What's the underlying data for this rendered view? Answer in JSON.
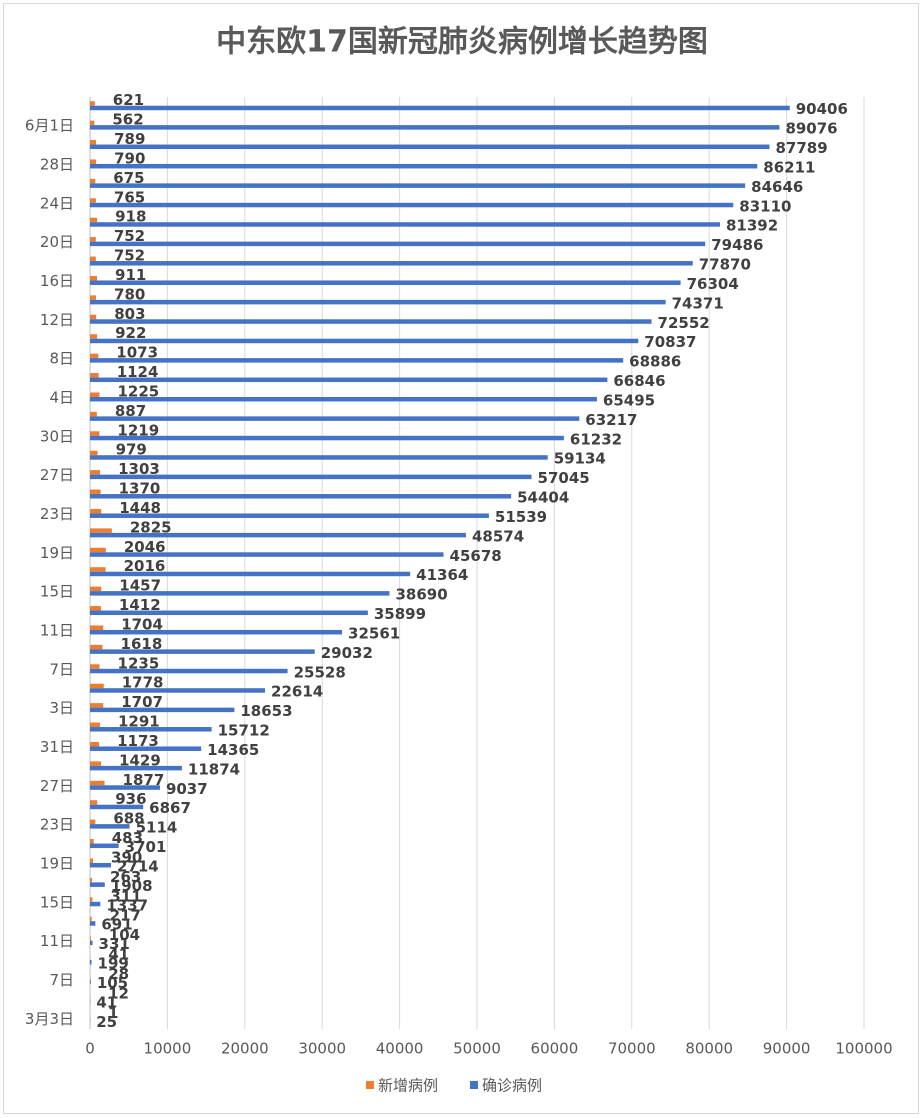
{
  "chart_data": {
    "type": "hbar",
    "title": "中东欧17国新冠肺炎病例增长趋势图",
    "categories": [
      "3月3日",
      null,
      "7日",
      null,
      "11日",
      null,
      "15日",
      null,
      "19日",
      null,
      "23日",
      null,
      "27日",
      null,
      "31日",
      null,
      "3日",
      null,
      "7日",
      null,
      "11日",
      null,
      "15日",
      null,
      "19日",
      null,
      "23日",
      null,
      "27日",
      null,
      "30日",
      null,
      "4日",
      null,
      "8日",
      null,
      "12日",
      null,
      "16日",
      null,
      "20日",
      null,
      "24日",
      null,
      "28日",
      null,
      "6月1日",
      null
    ],
    "series": [
      {
        "name": "新增病例",
        "color": "#ed7d31",
        "values": [
          1,
          12,
          28,
          41,
          104,
          217,
          311,
          263,
          390,
          483,
          688,
          936,
          1877,
          1429,
          1173,
          1291,
          1707,
          1778,
          1235,
          1618,
          1704,
          1412,
          1457,
          2016,
          2046,
          2825,
          1448,
          1370,
          1303,
          979,
          1219,
          887,
          1225,
          1124,
          1073,
          922,
          803,
          780,
          911,
          752,
          752,
          918,
          765,
          675,
          790,
          789,
          562,
          621
        ]
      },
      {
        "name": "确诊病例",
        "color": "#4472c4",
        "values": [
          25,
          41,
          105,
          199,
          331,
          691,
          1337,
          1908,
          2714,
          3701,
          5114,
          6867,
          9037,
          11874,
          14365,
          15712,
          18653,
          22614,
          25528,
          29032,
          32561,
          35899,
          38690,
          41364,
          45678,
          48574,
          51539,
          54404,
          57045,
          59134,
          61232,
          63217,
          65495,
          66846,
          68886,
          70837,
          72552,
          74371,
          76304,
          77870,
          79486,
          81392,
          83110,
          84646,
          86211,
          87789,
          89076,
          90406
        ]
      }
    ],
    "xlim": [
      0,
      100000
    ],
    "xticks": [
      0,
      10000,
      20000,
      30000,
      40000,
      50000,
      60000,
      70000,
      80000,
      90000,
      100000
    ],
    "grid": true,
    "legend": "bottom"
  }
}
